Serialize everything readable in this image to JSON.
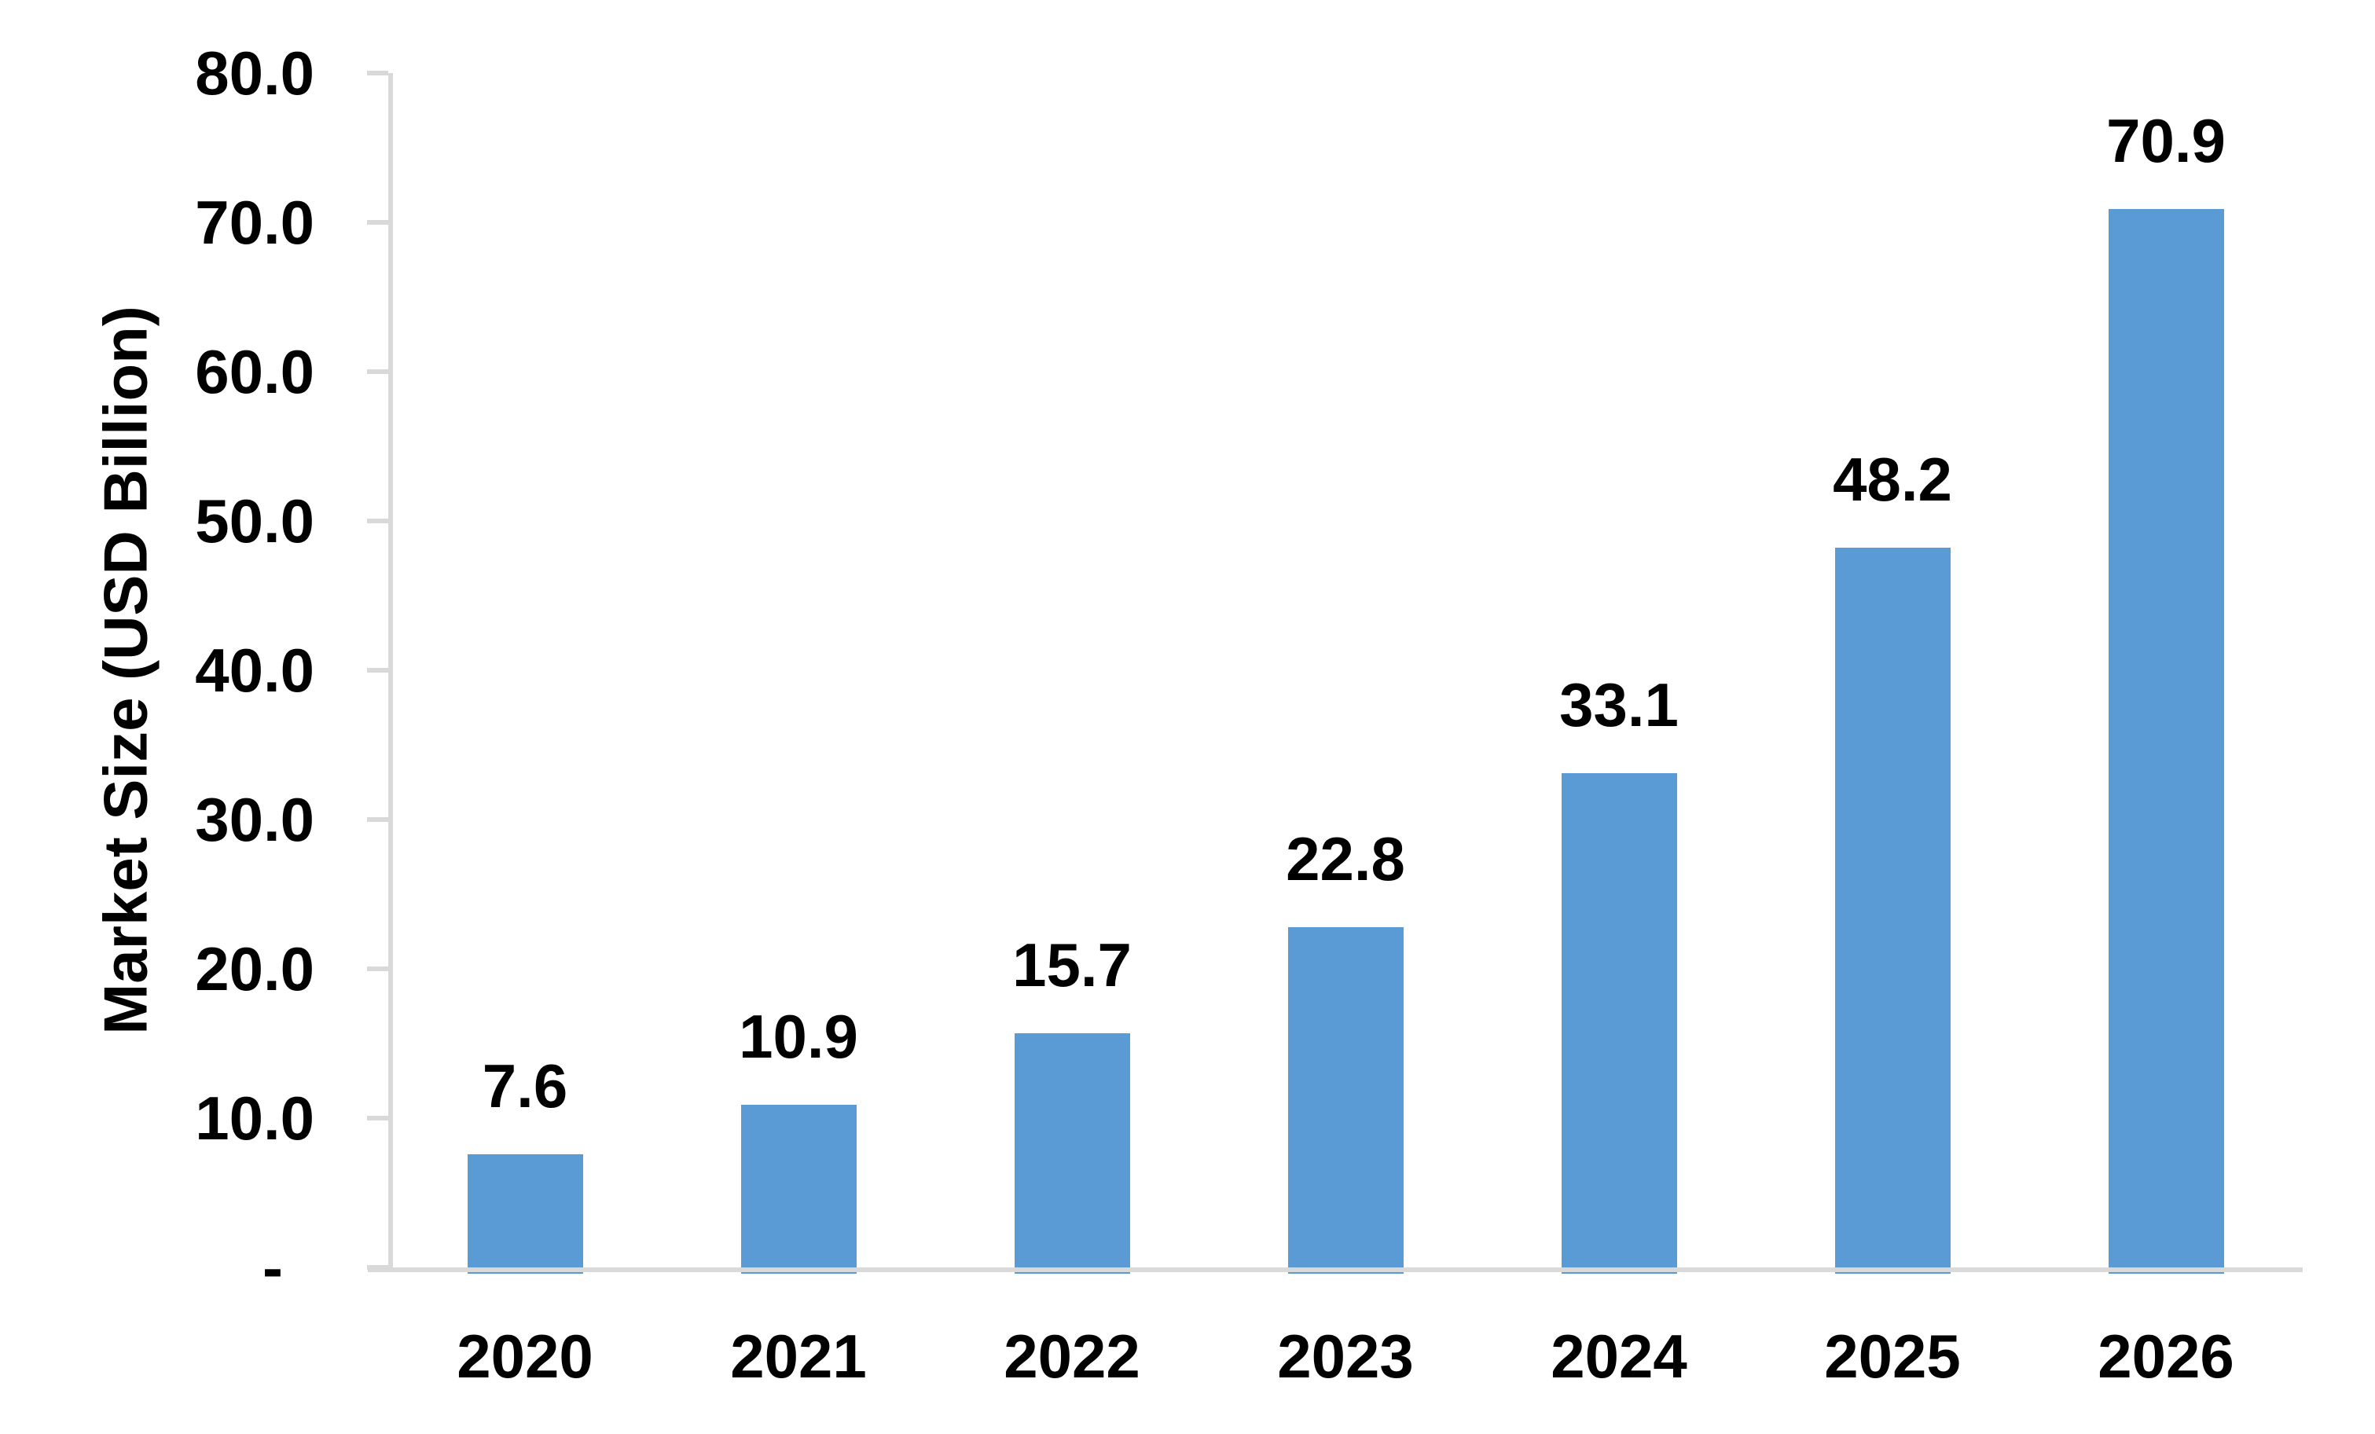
{
  "chart_data": {
    "type": "bar",
    "categories": [
      "2020",
      "2021",
      "2022",
      "2023",
      "2024",
      "2025",
      "2026"
    ],
    "values": [
      7.6,
      10.9,
      15.7,
      22.8,
      33.1,
      48.2,
      70.9
    ],
    "data_labels": [
      "7.6",
      "10.9",
      "15.7",
      "22.8",
      "33.1",
      "48.2",
      "70.9"
    ],
    "title": "",
    "xlabel": "",
    "ylabel": "Market Size (USD Billion)",
    "ylim": [
      0,
      80
    ],
    "ytick_interval": 10,
    "ytick_labels": [
      "-",
      "10.0",
      "20.0",
      "30.0",
      "40.0",
      "50.0",
      "60.0",
      "70.0",
      "80.0"
    ],
    "grid": false,
    "legend": false,
    "data_labels_shown": true,
    "colors": {
      "bar_fill": "#5B9BD5",
      "axis_line": "#D9D9D9",
      "text": "#000000",
      "background": "#FFFFFF"
    }
  }
}
